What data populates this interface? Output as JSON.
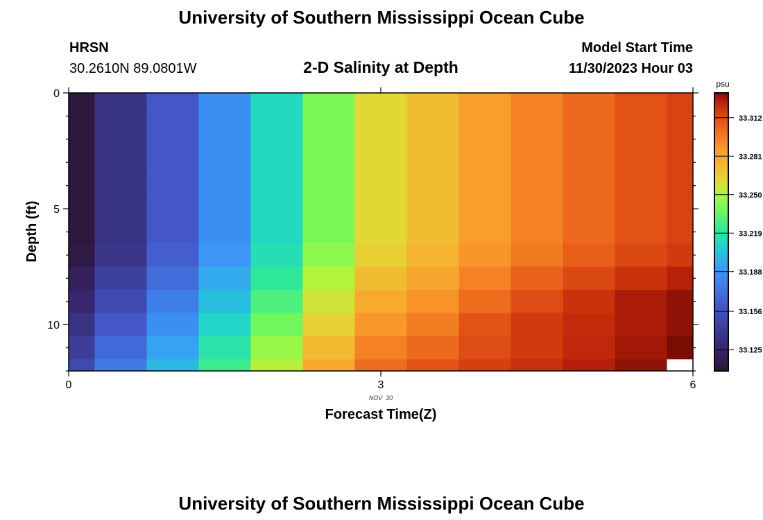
{
  "header": {
    "title": "University of Southern Mississippi Ocean Cube",
    "station": "HRSN",
    "location": "30.2610N  89.0801W",
    "model_start_label": "Model Start Time",
    "model_start_value": "11/30/2023 Hour 03"
  },
  "footer": {
    "title": "University of Southern Mississippi Ocean Cube"
  },
  "chart_data": {
    "type": "heatmap",
    "title": "2-D Salinity at Depth",
    "xlabel": "Forecast Time(Z)",
    "xsublabel": "NOV  30",
    "ylabel": "Depth (ft)",
    "xlim": [
      0,
      6
    ],
    "ylim": [
      0,
      12
    ],
    "y_inverted": true,
    "xticks": [
      0,
      3,
      6
    ],
    "xtick_labels": [
      "0",
      "3",
      "6"
    ],
    "yticks": [
      0,
      5,
      10
    ],
    "ytick_labels": [
      "0",
      "5",
      "10"
    ],
    "x": [
      0,
      0.5,
      1,
      1.5,
      2,
      2.5,
      3,
      3.5,
      4,
      4.5,
      5,
      5.5,
      6
    ],
    "y": [
      0,
      1,
      2,
      3,
      4,
      5,
      6,
      7,
      8,
      9,
      10,
      11,
      12
    ],
    "values": [
      [
        33.11,
        33.135,
        33.16,
        33.185,
        33.212,
        33.24,
        33.262,
        33.272,
        33.285,
        33.295,
        33.303,
        33.31,
        33.315
      ],
      [
        33.11,
        33.135,
        33.16,
        33.185,
        33.212,
        33.24,
        33.262,
        33.272,
        33.285,
        33.295,
        33.303,
        33.31,
        33.315
      ],
      [
        33.11,
        33.135,
        33.16,
        33.185,
        33.212,
        33.24,
        33.262,
        33.272,
        33.285,
        33.295,
        33.303,
        33.31,
        33.315
      ],
      [
        33.11,
        33.135,
        33.16,
        33.185,
        33.212,
        33.24,
        33.262,
        33.272,
        33.285,
        33.295,
        33.303,
        33.31,
        33.315
      ],
      [
        33.11,
        33.135,
        33.16,
        33.185,
        33.212,
        33.24,
        33.262,
        33.272,
        33.285,
        33.295,
        33.303,
        33.31,
        33.315
      ],
      [
        33.11,
        33.135,
        33.16,
        33.185,
        33.212,
        33.24,
        33.262,
        33.272,
        33.285,
        33.295,
        33.303,
        33.31,
        33.315
      ],
      [
        33.11,
        33.135,
        33.16,
        33.185,
        33.212,
        33.24,
        33.262,
        33.272,
        33.285,
        33.295,
        33.303,
        33.31,
        33.315
      ],
      [
        33.113,
        33.138,
        33.163,
        33.188,
        33.215,
        33.243,
        33.265,
        33.275,
        33.288,
        33.298,
        33.306,
        33.313,
        33.318
      ],
      [
        33.12,
        33.145,
        33.17,
        33.195,
        33.222,
        33.25,
        33.272,
        33.282,
        33.295,
        33.305,
        33.313,
        33.32,
        33.325
      ],
      [
        33.127,
        33.152,
        33.177,
        33.202,
        33.229,
        33.257,
        33.279,
        33.289,
        33.302,
        33.312,
        33.32,
        33.327,
        33.33
      ],
      [
        33.135,
        33.16,
        33.185,
        33.21,
        33.237,
        33.265,
        33.287,
        33.297,
        33.31,
        33.318,
        33.322,
        33.327,
        33.33
      ],
      [
        33.143,
        33.168,
        33.193,
        33.218,
        33.245,
        33.273,
        33.295,
        33.303,
        33.312,
        33.318,
        33.323,
        33.328,
        33.332
      ],
      [
        33.15,
        33.175,
        33.2,
        33.225,
        33.252,
        33.28,
        33.302,
        33.31,
        33.316,
        33.321,
        33.326,
        33.33,
        null
      ]
    ],
    "colorbar": {
      "label": "psu",
      "range": [
        33.108,
        33.332
      ],
      "ticks": [
        33.125,
        33.156,
        33.188,
        33.219,
        33.25,
        33.281,
        33.312
      ],
      "tick_labels": [
        "33.125",
        "33.156",
        "33.188",
        "33.219",
        "33.250",
        "33.281",
        "33.312"
      ],
      "stops": [
        [
          33.108,
          "#2f1538"
        ],
        [
          33.125,
          "#36246a"
        ],
        [
          33.14,
          "#3b3a90"
        ],
        [
          33.16,
          "#4457c8"
        ],
        [
          33.178,
          "#3f80ea"
        ],
        [
          33.19,
          "#3a9af8"
        ],
        [
          33.208,
          "#1ed2d0"
        ],
        [
          33.222,
          "#30e89a"
        ],
        [
          33.238,
          "#72f95a"
        ],
        [
          33.25,
          "#b0f53a"
        ],
        [
          33.262,
          "#e2d835"
        ],
        [
          33.275,
          "#f4b430"
        ],
        [
          33.285,
          "#fa9e2b"
        ],
        [
          33.298,
          "#f27a22"
        ],
        [
          33.308,
          "#e65818"
        ],
        [
          33.318,
          "#d03a0e"
        ],
        [
          33.326,
          "#b51e08"
        ],
        [
          33.332,
          "#7a0c04"
        ]
      ],
      "missing_color": "#ffffff"
    }
  }
}
